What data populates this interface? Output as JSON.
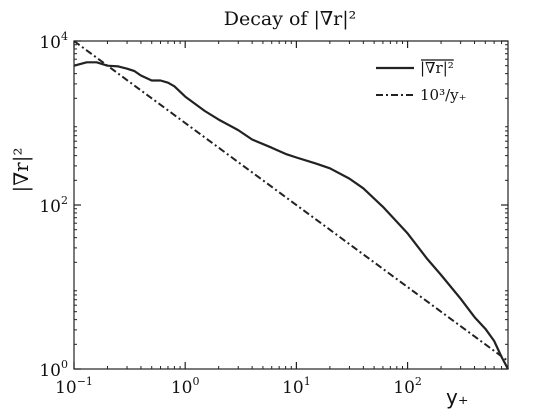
{
  "chart_data": {
    "type": "line",
    "title": "Decay of |∇r|²",
    "xlabel": "y₊",
    "ylabel": "|∇r|²",
    "xscale": "log",
    "yscale": "log",
    "xlim": [
      0.1,
      800
    ],
    "ylim": [
      1,
      10000
    ],
    "xticks": [
      {
        "base": "10",
        "exp": "−1",
        "value": 0.1
      },
      {
        "base": "10",
        "exp": "0",
        "value": 1
      },
      {
        "base": "10",
        "exp": "1",
        "value": 10
      },
      {
        "base": "10",
        "exp": "2",
        "value": 100
      }
    ],
    "yticks": [
      {
        "base": "10",
        "exp": "0",
        "value": 1
      },
      {
        "base": "10",
        "exp": "2",
        "value": 100
      },
      {
        "base": "10",
        "exp": "4",
        "value": 10000
      }
    ],
    "grid": false,
    "legend_position": "top-right",
    "series": [
      {
        "name": "|∇r|²",
        "style": "solid",
        "color": "#222222",
        "x": [
          0.1,
          0.13,
          0.16,
          0.2,
          0.25,
          0.3,
          0.35,
          0.4,
          0.5,
          0.6,
          0.7,
          0.8,
          1.0,
          1.5,
          2,
          3,
          4,
          6,
          8,
          10,
          15,
          20,
          30,
          40,
          60,
          100,
          150,
          200,
          300,
          400,
          500,
          600,
          700,
          800
        ],
        "y": [
          5000,
          5500,
          5500,
          5000,
          4900,
          4600,
          4300,
          3800,
          3300,
          3300,
          3100,
          2800,
          2100,
          1400,
          1100,
          820,
          630,
          500,
          420,
          380,
          320,
          280,
          210,
          160,
          95,
          45,
          22,
          14,
          7.2,
          4.3,
          3.1,
          2.2,
          1.4,
          1.0
        ]
      },
      {
        "name": "10³/y₊",
        "style": "dashdot",
        "color": "#222222",
        "x": [
          0.1,
          800
        ],
        "y": [
          10000,
          1.25
        ]
      }
    ]
  }
}
